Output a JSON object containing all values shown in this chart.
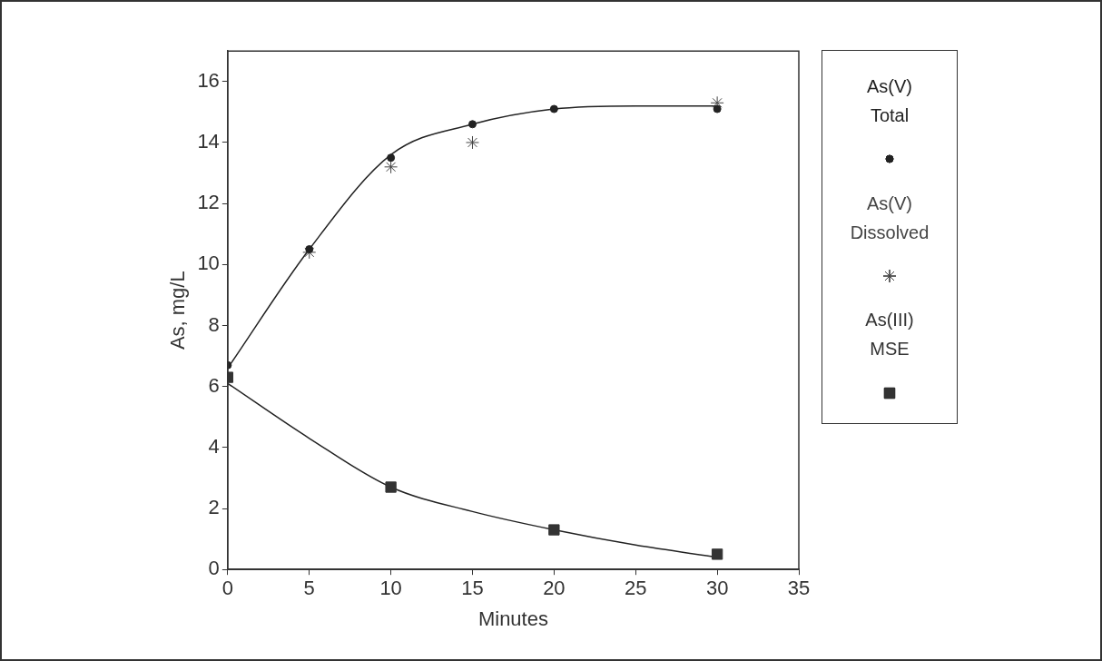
{
  "chart_data": {
    "type": "scatter",
    "xlabel": "Minutes",
    "ylabel": "As, mg/L",
    "xlim": [
      0,
      35
    ],
    "xticks": [
      0,
      5,
      10,
      15,
      20,
      25,
      30,
      35
    ],
    "ylim": [
      0,
      17
    ],
    "yticks": [
      0,
      2,
      4,
      6,
      8,
      10,
      12,
      14,
      16
    ],
    "grid": false,
    "legend": "right",
    "series": [
      {
        "name": "As(V)\nTotal",
        "color": "#222222",
        "marker": "circle",
        "x": [
          0,
          5,
          10,
          15,
          20,
          30
        ],
        "values": [
          6.7,
          10.5,
          13.5,
          14.6,
          15.1,
          15.1
        ]
      },
      {
        "name": "As(V)\nDissolved",
        "color": "#444444",
        "marker": "cross",
        "x": [
          5,
          10,
          15,
          30
        ],
        "values": [
          10.4,
          13.2,
          14.0,
          15.3
        ]
      },
      {
        "name": "As(III)\nMSE",
        "color": "#333333",
        "marker": "square",
        "x": [
          0,
          10,
          20,
          30
        ],
        "values": [
          6.3,
          2.7,
          1.3,
          0.5
        ]
      },
      {
        "type": "line",
        "color": "#222222",
        "marker": "none",
        "x": [
          0,
          5,
          10,
          15,
          20,
          25,
          30
        ],
        "values": [
          6.6,
          10.5,
          13.6,
          14.6,
          15.1,
          15.2,
          15.2
        ]
      },
      {
        "type": "line",
        "color": "#222222",
        "marker": "none",
        "x": [
          0,
          5,
          10,
          15,
          20,
          25,
          30
        ],
        "values": [
          6.1,
          4.3,
          2.7,
          1.9,
          1.3,
          0.8,
          0.4
        ]
      }
    ]
  }
}
